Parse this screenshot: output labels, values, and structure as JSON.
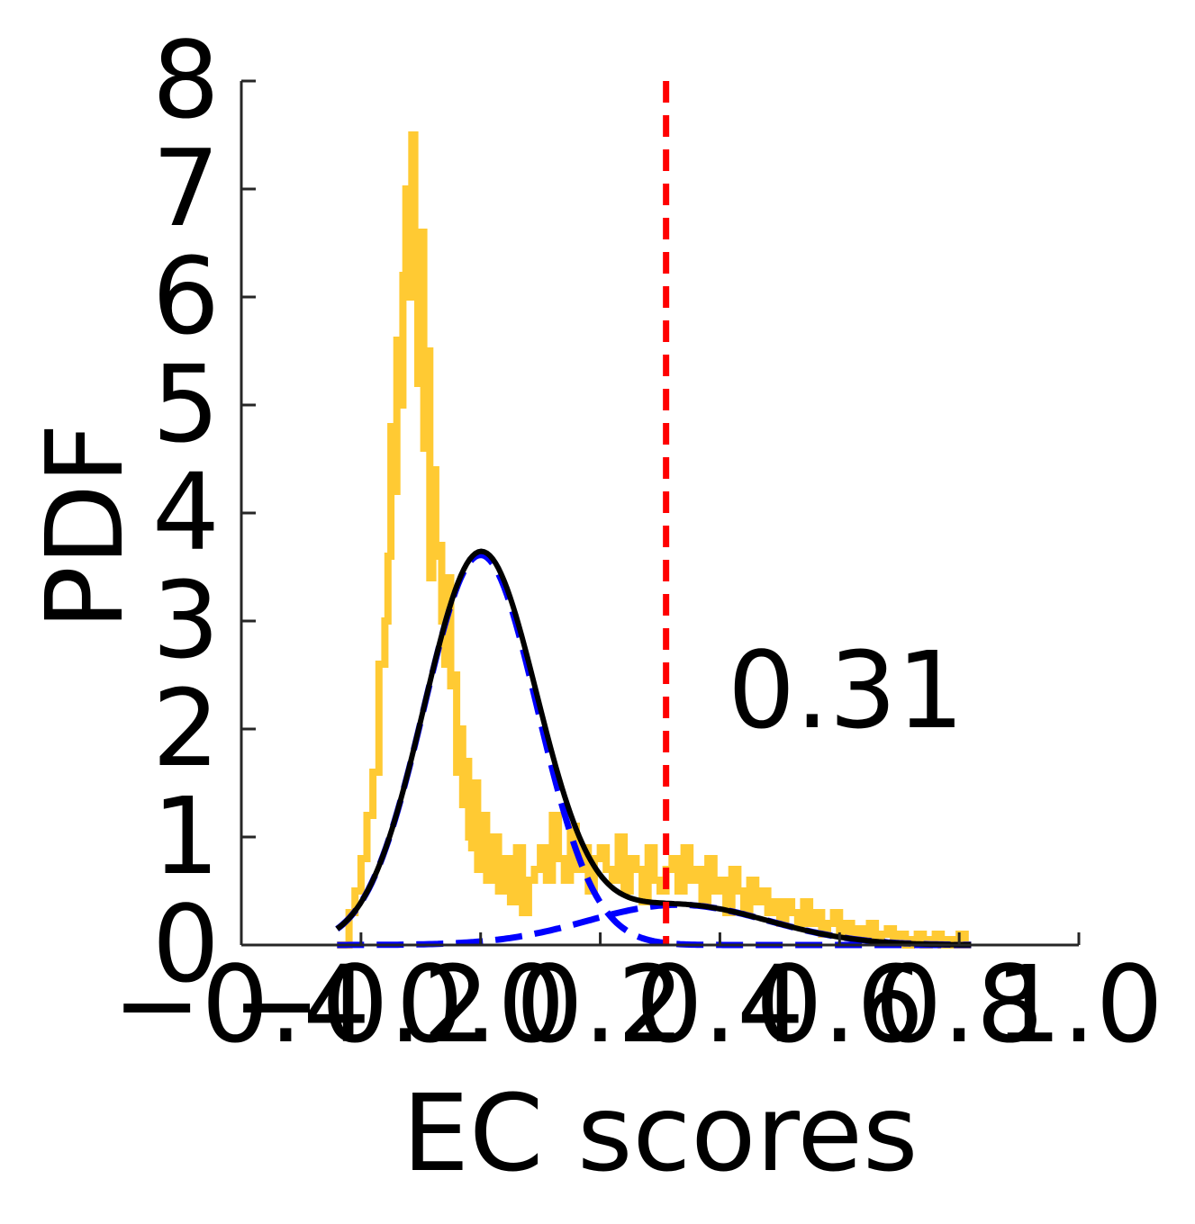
{
  "chart_data": {
    "type": "line",
    "title": "",
    "xlabel": "EC scores",
    "ylabel": "PDF",
    "xlim": [
      -0.4,
      1.0
    ],
    "ylim": [
      0,
      8
    ],
    "x_ticks": [
      -0.4,
      -0.2,
      0.0,
      0.2,
      0.4,
      0.6,
      0.8,
      1.0
    ],
    "x_tick_labels": [
      "−0.4",
      "−0.2",
      "0.0",
      "0.2",
      "0.4",
      "0.6",
      "0.8",
      "1.0"
    ],
    "y_ticks": [
      0,
      1,
      2,
      3,
      4,
      5,
      6,
      7,
      8
    ],
    "y_tick_labels": [
      "0",
      "1",
      "2",
      "3",
      "4",
      "5",
      "6",
      "7",
      "8"
    ],
    "grid": false,
    "legend": "none",
    "threshold": {
      "x": 0.31,
      "label": "0.31",
      "color": "#ff0000"
    },
    "colors": {
      "histogram": "#ffca33",
      "mixture": "#000000",
      "components": "#0000ff",
      "axis": "#262626"
    },
    "series": [
      {
        "style": "histogram-outline",
        "color": "#ffca33",
        "x": [
          -0.24,
          -0.22,
          -0.21,
          -0.2,
          -0.19,
          -0.18,
          -0.17,
          -0.16,
          -0.155,
          -0.15,
          -0.145,
          -0.14,
          -0.135,
          -0.13,
          -0.125,
          -0.12,
          -0.115,
          -0.11,
          -0.105,
          -0.1,
          -0.095,
          -0.09,
          -0.085,
          -0.08,
          -0.075,
          -0.07,
          -0.065,
          -0.06,
          -0.055,
          -0.05,
          -0.045,
          -0.04,
          -0.035,
          -0.03,
          -0.025,
          -0.02,
          -0.015,
          -0.01,
          -0.005,
          0.0,
          0.01,
          0.02,
          0.03,
          0.04,
          0.05,
          0.06,
          0.07,
          0.08,
          0.09,
          0.1,
          0.11,
          0.12,
          0.13,
          0.14,
          0.15,
          0.16,
          0.17,
          0.18,
          0.19,
          0.2,
          0.21,
          0.22,
          0.23,
          0.24,
          0.25,
          0.26,
          0.27,
          0.28,
          0.29,
          0.3,
          0.31,
          0.32,
          0.33,
          0.34,
          0.35,
          0.36,
          0.37,
          0.38,
          0.39,
          0.4,
          0.41,
          0.42,
          0.43,
          0.44,
          0.45,
          0.46,
          0.47,
          0.48,
          0.49,
          0.5,
          0.51,
          0.52,
          0.53,
          0.54,
          0.55,
          0.56,
          0.57,
          0.58,
          0.59,
          0.6,
          0.61,
          0.62,
          0.63,
          0.64,
          0.65,
          0.66,
          0.67,
          0.68,
          0.69,
          0.7,
          0.71,
          0.72,
          0.73,
          0.74,
          0.75,
          0.76,
          0.77,
          0.78,
          0.79,
          0.8,
          0.81,
          0.82
        ],
        "y": [
          0.0,
          0.3,
          0.5,
          0.8,
          1.2,
          1.6,
          2.6,
          3.0,
          3.6,
          4.8,
          4.2,
          5.6,
          5.0,
          6.2,
          7.0,
          6.0,
          7.5,
          6.4,
          5.2,
          6.6,
          4.6,
          5.5,
          3.4,
          4.4,
          3.6,
          3.7,
          3.0,
          2.6,
          3.4,
          2.4,
          2.5,
          1.6,
          2.0,
          1.3,
          1.7,
          1.0,
          0.9,
          1.5,
          0.7,
          1.2,
          0.6,
          1.0,
          0.5,
          0.8,
          0.4,
          0.9,
          0.3,
          0.6,
          0.7,
          0.9,
          0.6,
          1.2,
          0.8,
          0.6,
          1.1,
          0.7,
          0.9,
          0.5,
          0.8,
          0.9,
          0.7,
          0.6,
          1.0,
          0.5,
          0.8,
          0.7,
          0.4,
          0.9,
          0.6,
          0.5,
          0.7,
          0.8,
          0.5,
          0.9,
          0.6,
          0.7,
          0.4,
          0.8,
          0.5,
          0.6,
          0.3,
          0.7,
          0.5,
          0.3,
          0.6,
          0.4,
          0.5,
          0.3,
          0.4,
          0.2,
          0.4,
          0.3,
          0.2,
          0.4,
          0.2,
          0.3,
          0.1,
          0.2,
          0.3,
          0.1,
          0.2,
          0.1,
          0.15,
          0.1,
          0.2,
          0.05,
          0.1,
          0.15,
          0.05,
          0.1,
          0.0,
          0.05,
          0.1,
          0.0,
          0.05,
          0.1,
          0.0,
          0.05,
          0.0,
          0.1,
          0.0,
          0.0
        ]
      },
      {
        "style": "solid",
        "color": "#000000",
        "model": "mixture",
        "components": [
          {
            "weight": 0.86,
            "mean": 0.0,
            "sd": 0.095
          },
          {
            "weight": 0.14,
            "mean": 0.33,
            "sd": 0.15
          }
        ],
        "x_range": [
          -0.24,
          0.82
        ]
      },
      {
        "style": "dashed",
        "color": "#0000ff",
        "model": "component",
        "components": [
          {
            "weight": 0.86,
            "mean": 0.0,
            "sd": 0.095
          }
        ],
        "x_range": [
          -0.24,
          0.82
        ]
      },
      {
        "style": "dashed",
        "color": "#0000ff",
        "model": "component",
        "components": [
          {
            "weight": 0.14,
            "mean": 0.33,
            "sd": 0.15
          }
        ],
        "x_range": [
          -0.24,
          0.82
        ]
      }
    ]
  }
}
